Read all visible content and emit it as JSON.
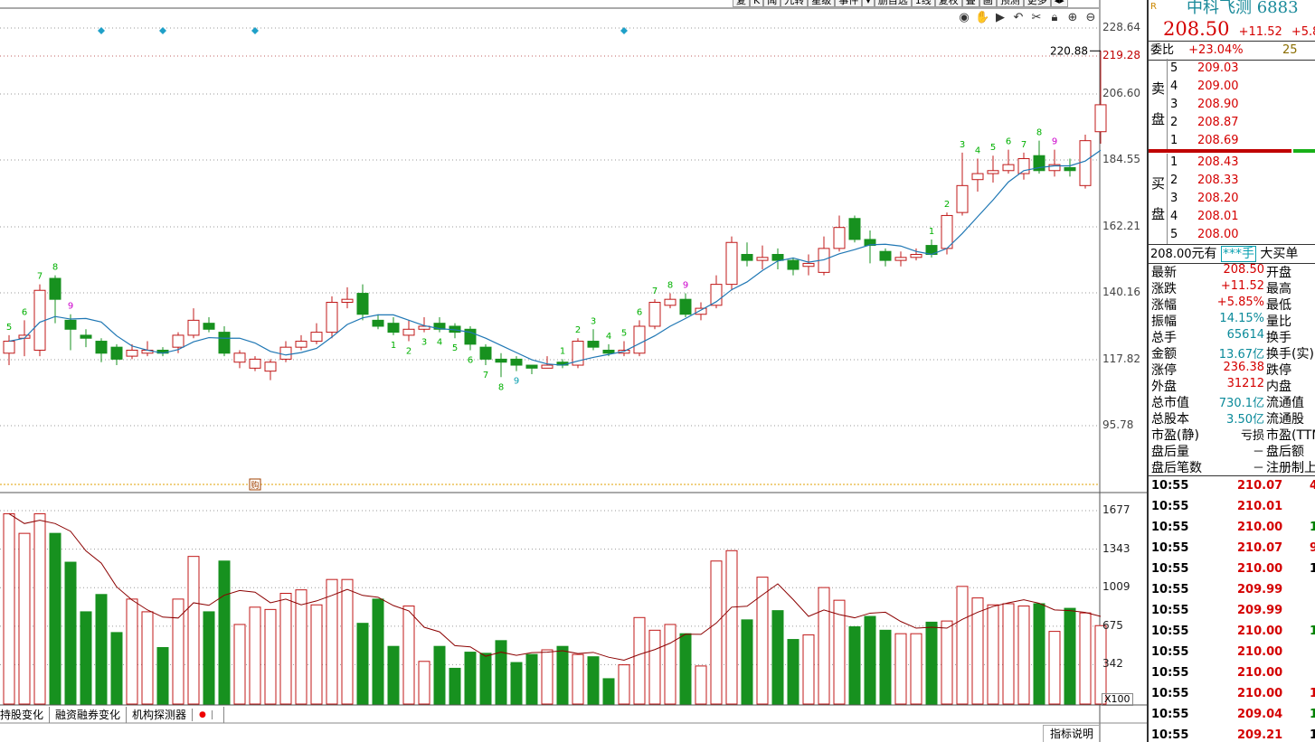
{
  "top_menu": [
    "复",
    "K",
    "闻",
    "九转",
    "星级",
    "事件",
    "▾",
    "删自选",
    "1线",
    "复权",
    "叠",
    "画",
    "预测",
    "更多",
    "◂▸"
  ],
  "price_axis": [
    {
      "v": "228.64",
      "price": 228.64,
      "color": "#444"
    },
    {
      "v": "219.28",
      "price": 219.28,
      "color": "#c00000"
    },
    {
      "v": "206.60",
      "price": 206.6,
      "color": "#444"
    },
    {
      "v": "184.55",
      "price": 184.55,
      "color": "#444"
    },
    {
      "v": "162.21",
      "price": 162.21,
      "color": "#444"
    },
    {
      "v": "140.16",
      "price": 140.16,
      "color": "#444"
    },
    {
      "v": "117.82",
      "price": 117.82,
      "color": "#444"
    },
    {
      "v": "95.78",
      "price": 95.78,
      "color": "#444"
    }
  ],
  "volume_axis": [
    {
      "v": "1677",
      "vol": 1677
    },
    {
      "v": "1343",
      "vol": 1343
    },
    {
      "v": "1009",
      "vol": 1009
    },
    {
      "v": "675",
      "vol": 675
    },
    {
      "v": "342",
      "vol": 342
    }
  ],
  "volume_unit": "X100",
  "max_label": "220.88",
  "buy_marker": "购",
  "tabs": [
    "持股变化",
    "融资融券变化",
    "机构探测器"
  ],
  "indicator_button": "指标说明",
  "candles": [
    {
      "o": 120,
      "c": 124,
      "h": 126,
      "l": 116,
      "v": 1650
    },
    {
      "o": 125,
      "c": 126,
      "h": 131,
      "l": 119,
      "v": 1480
    },
    {
      "o": 121,
      "c": 141,
      "h": 143,
      "l": 119,
      "v": 1650
    },
    {
      "o": 145,
      "c": 138,
      "h": 146,
      "l": 130,
      "v": 1480
    },
    {
      "o": 131,
      "c": 128,
      "h": 133,
      "l": 121,
      "v": 1230
    },
    {
      "o": 126,
      "c": 125,
      "h": 128,
      "l": 122,
      "v": 800
    },
    {
      "o": 124,
      "c": 120,
      "h": 125,
      "l": 117,
      "v": 950
    },
    {
      "o": 122,
      "c": 118,
      "h": 123,
      "l": 116,
      "v": 620
    },
    {
      "o": 119,
      "c": 121,
      "h": 123,
      "l": 118,
      "v": 910
    },
    {
      "o": 120,
      "c": 121,
      "h": 124,
      "l": 119,
      "v": 800
    },
    {
      "o": 121,
      "c": 120,
      "h": 122,
      "l": 119,
      "v": 490
    },
    {
      "o": 122,
      "c": 126,
      "h": 127,
      "l": 120,
      "v": 910
    },
    {
      "o": 126,
      "c": 131,
      "h": 135,
      "l": 125,
      "v": 1280
    },
    {
      "o": 130,
      "c": 128,
      "h": 132,
      "l": 127,
      "v": 800
    },
    {
      "o": 127,
      "c": 120,
      "h": 129,
      "l": 119,
      "v": 1240
    },
    {
      "o": 117,
      "c": 120,
      "h": 121,
      "l": 115,
      "v": 690
    },
    {
      "o": 115,
      "c": 118,
      "h": 119,
      "l": 114,
      "v": 840
    },
    {
      "o": 114,
      "c": 117,
      "h": 118,
      "l": 111,
      "v": 820
    },
    {
      "o": 118,
      "c": 122,
      "h": 124,
      "l": 117,
      "v": 960
    },
    {
      "o": 122,
      "c": 124,
      "h": 126,
      "l": 121,
      "v": 990
    },
    {
      "o": 124,
      "c": 127,
      "h": 130,
      "l": 123,
      "v": 860
    },
    {
      "o": 127,
      "c": 137,
      "h": 139,
      "l": 125,
      "v": 1080
    },
    {
      "o": 137,
      "c": 138,
      "h": 142,
      "l": 135,
      "v": 1080
    },
    {
      "o": 140,
      "c": 133,
      "h": 143,
      "l": 131,
      "v": 700
    },
    {
      "o": 131,
      "c": 129,
      "h": 133,
      "l": 128,
      "v": 910
    },
    {
      "o": 130,
      "c": 127,
      "h": 132,
      "l": 126,
      "v": 500
    },
    {
      "o": 126,
      "c": 128,
      "h": 131,
      "l": 124,
      "v": 850
    },
    {
      "o": 128,
      "c": 129,
      "h": 132,
      "l": 127,
      "v": 370
    },
    {
      "o": 130,
      "c": 128,
      "h": 132,
      "l": 127,
      "v": 500
    },
    {
      "o": 129,
      "c": 127,
      "h": 130,
      "l": 125,
      "v": 310
    },
    {
      "o": 128,
      "c": 123,
      "h": 129,
      "l": 121,
      "v": 450
    },
    {
      "o": 122,
      "c": 118,
      "h": 123,
      "l": 116,
      "v": 440
    },
    {
      "o": 118,
      "c": 117,
      "h": 120,
      "l": 112,
      "v": 550
    },
    {
      "o": 118,
      "c": 116,
      "h": 119,
      "l": 114,
      "v": 360
    },
    {
      "o": 116,
      "c": 115,
      "h": 116,
      "l": 113,
      "v": 430
    },
    {
      "o": 115,
      "c": 116,
      "h": 119,
      "l": 115,
      "v": 470
    },
    {
      "o": 117,
      "c": 116,
      "h": 118,
      "l": 115,
      "v": 500
    },
    {
      "o": 116,
      "c": 124,
      "h": 125,
      "l": 115,
      "v": 430
    },
    {
      "o": 124,
      "c": 122,
      "h": 128,
      "l": 121,
      "v": 410
    },
    {
      "o": 121,
      "c": 120,
      "h": 123,
      "l": 119,
      "v": 220
    },
    {
      "o": 120,
      "c": 121,
      "h": 124,
      "l": 119,
      "v": 340
    },
    {
      "o": 120,
      "c": 129,
      "h": 131,
      "l": 119,
      "v": 750
    },
    {
      "o": 129,
      "c": 137,
      "h": 138,
      "l": 128,
      "v": 640
    },
    {
      "o": 136,
      "c": 138,
      "h": 140,
      "l": 135,
      "v": 690
    },
    {
      "o": 138,
      "c": 133,
      "h": 140,
      "l": 132,
      "v": 610
    },
    {
      "o": 133,
      "c": 135,
      "h": 137,
      "l": 131,
      "v": 330
    },
    {
      "o": 136,
      "c": 143,
      "h": 146,
      "l": 135,
      "v": 1240
    },
    {
      "o": 143,
      "c": 157,
      "h": 159,
      "l": 141,
      "v": 1330
    },
    {
      "o": 153,
      "c": 151,
      "h": 157,
      "l": 149,
      "v": 730
    },
    {
      "o": 151,
      "c": 152,
      "h": 156,
      "l": 148,
      "v": 1100
    },
    {
      "o": 153,
      "c": 151,
      "h": 155,
      "l": 148,
      "v": 810
    },
    {
      "o": 151,
      "c": 148,
      "h": 152,
      "l": 146,
      "v": 560
    },
    {
      "o": 149,
      "c": 150,
      "h": 153,
      "l": 146,
      "v": 600
    },
    {
      "o": 147,
      "c": 155,
      "h": 159,
      "l": 146,
      "v": 1010
    },
    {
      "o": 155,
      "c": 162,
      "h": 166,
      "l": 154,
      "v": 900
    },
    {
      "o": 165,
      "c": 158,
      "h": 166,
      "l": 157,
      "v": 670
    },
    {
      "o": 158,
      "c": 156,
      "h": 161,
      "l": 150,
      "v": 760
    },
    {
      "o": 154,
      "c": 151,
      "h": 155,
      "l": 149,
      "v": 640
    },
    {
      "o": 151,
      "c": 152,
      "h": 154,
      "l": 149,
      "v": 610
    },
    {
      "o": 152,
      "c": 153,
      "h": 155,
      "l": 151,
      "v": 610
    },
    {
      "o": 156,
      "c": 153,
      "h": 158,
      "l": 152,
      "v": 710
    },
    {
      "o": 155,
      "c": 166,
      "h": 167,
      "l": 153,
      "v": 720
    },
    {
      "o": 167,
      "c": 176,
      "h": 187,
      "l": 166,
      "v": 1020
    },
    {
      "o": 178,
      "c": 180,
      "h": 185,
      "l": 174,
      "v": 920
    },
    {
      "o": 180,
      "c": 181,
      "h": 186,
      "l": 177,
      "v": 860
    },
    {
      "o": 181,
      "c": 183,
      "h": 188,
      "l": 180,
      "v": 870
    },
    {
      "o": 180,
      "c": 185,
      "h": 187,
      "l": 178,
      "v": 850
    },
    {
      "o": 186,
      "c": 181,
      "h": 191,
      "l": 180,
      "v": 870
    },
    {
      "o": 181,
      "c": 183,
      "h": 188,
      "l": 179,
      "v": 630
    },
    {
      "o": 182,
      "c": 181,
      "h": 185,
      "l": 179,
      "v": 830
    },
    {
      "o": 176,
      "c": 191,
      "h": 193,
      "l": 175,
      "v": 790
    },
    {
      "o": 194,
      "c": 203,
      "h": 221,
      "l": 190,
      "v": 680
    }
  ],
  "td_counts": [
    {
      "i": 0,
      "t": "5",
      "pos": "above",
      "color": "#00b000"
    },
    {
      "i": 1,
      "t": "6",
      "pos": "above",
      "color": "#00b000"
    },
    {
      "i": 2,
      "t": "7",
      "pos": "above",
      "color": "#00b000"
    },
    {
      "i": 3,
      "t": "8",
      "pos": "above",
      "color": "#00b000"
    },
    {
      "i": 4,
      "t": "9",
      "pos": "above",
      "color": "#cc00cc"
    },
    {
      "i": 25,
      "t": "1",
      "pos": "below",
      "color": "#00b000"
    },
    {
      "i": 26,
      "t": "2",
      "pos": "below",
      "color": "#00b000"
    },
    {
      "i": 27,
      "t": "3",
      "pos": "below",
      "color": "#00b000"
    },
    {
      "i": 28,
      "t": "4",
      "pos": "below",
      "color": "#00b000"
    },
    {
      "i": 29,
      "t": "5",
      "pos": "below",
      "color": "#00b000"
    },
    {
      "i": 30,
      "t": "6",
      "pos": "below",
      "color": "#00b000"
    },
    {
      "i": 31,
      "t": "7",
      "pos": "below",
      "color": "#00b000"
    },
    {
      "i": 32,
      "t": "8",
      "pos": "below",
      "color": "#00b000"
    },
    {
      "i": 33,
      "t": "9",
      "pos": "below",
      "color": "#0aa0b0"
    },
    {
      "i": 36,
      "t": "1",
      "pos": "above",
      "color": "#00b000"
    },
    {
      "i": 37,
      "t": "2",
      "pos": "above",
      "color": "#00b000"
    },
    {
      "i": 38,
      "t": "3",
      "pos": "above",
      "color": "#00b000"
    },
    {
      "i": 39,
      "t": "4",
      "pos": "above",
      "color": "#00b000"
    },
    {
      "i": 40,
      "t": "5",
      "pos": "above",
      "color": "#00b000"
    },
    {
      "i": 41,
      "t": "6",
      "pos": "above",
      "color": "#00b000"
    },
    {
      "i": 42,
      "t": "7",
      "pos": "above",
      "color": "#00b000"
    },
    {
      "i": 43,
      "t": "8",
      "pos": "above",
      "color": "#00b000"
    },
    {
      "i": 44,
      "t": "9",
      "pos": "above",
      "color": "#cc00cc"
    },
    {
      "i": 60,
      "t": "1",
      "pos": "above",
      "color": "#00b000"
    },
    {
      "i": 61,
      "t": "2",
      "pos": "above",
      "color": "#00b000"
    },
    {
      "i": 62,
      "t": "3",
      "pos": "above",
      "color": "#00b000"
    },
    {
      "i": 63,
      "t": "4",
      "pos": "above",
      "color": "#00b000"
    },
    {
      "i": 64,
      "t": "5",
      "pos": "above",
      "color": "#00b000"
    },
    {
      "i": 65,
      "t": "6",
      "pos": "above",
      "color": "#00b000"
    },
    {
      "i": 66,
      "t": "7",
      "pos": "above",
      "color": "#00b000"
    },
    {
      "i": 67,
      "t": "8",
      "pos": "above",
      "color": "#00b000"
    },
    {
      "i": 68,
      "t": "9",
      "pos": "above",
      "color": "#cc00cc"
    }
  ],
  "event_markers": [
    6,
    10,
    16,
    40
  ],
  "stock_header": {
    "logo": "R",
    "name": "中科飞测 6883",
    "price": "208.50",
    "change": "+11.52",
    "pct": "+5.8"
  },
  "weibi": {
    "label": "委比",
    "value": "+23.04%",
    "extra": "25"
  },
  "sell_label": [
    "卖",
    "盘"
  ],
  "buy_label": [
    "买",
    "盘"
  ],
  "asks": [
    {
      "lvl": "5",
      "px": "209.03"
    },
    {
      "lvl": "4",
      "px": "209.00"
    },
    {
      "lvl": "3",
      "px": "208.90"
    },
    {
      "lvl": "2",
      "px": "208.87"
    },
    {
      "lvl": "1",
      "px": "208.69"
    }
  ],
  "bids": [
    {
      "lvl": "1",
      "px": "208.43"
    },
    {
      "lvl": "2",
      "px": "208.33"
    },
    {
      "lvl": "3",
      "px": "208.20"
    },
    {
      "lvl": "4",
      "px": "208.01"
    },
    {
      "lvl": "5",
      "px": "208.00"
    }
  ],
  "quote_bar": {
    "price": "208.00",
    "unit": "元有",
    "qty": "***手",
    "btn": "大买单"
  },
  "stats": [
    {
      "l": "最新",
      "v": "208.50",
      "vc": "r-red",
      "r": "开盘"
    },
    {
      "l": "涨跌",
      "v": "+11.52",
      "vc": "r-red",
      "r": "最高"
    },
    {
      "l": "涨幅",
      "v": "+5.85%",
      "vc": "r-red",
      "r": "最低"
    },
    {
      "l": "振幅",
      "v": "14.15%",
      "vc": "r-teal",
      "r": "量比"
    },
    {
      "l": "总手",
      "v": "65614",
      "vc": "r-teal",
      "r": "换手"
    },
    {
      "l": "金额",
      "v": "13.67亿",
      "vc": "r-teal",
      "r": "换手(实)"
    },
    {
      "l": "涨停",
      "v": "236.38",
      "vc": "r-red",
      "r": "跌停"
    },
    {
      "l": "外盘",
      "v": "31212",
      "vc": "r-red",
      "r": "内盘"
    },
    {
      "l": "总市值",
      "v": "730.1亿",
      "vc": "r-teal",
      "r": "流通值"
    },
    {
      "l": "总股本",
      "v": "3.50亿",
      "vc": "r-teal",
      "r": "流通股"
    },
    {
      "l": "市盈(静)",
      "v": "亏损",
      "vc": "",
      "r": "市盈(TTM)"
    },
    {
      "l": "盘后量",
      "v": "－",
      "vc": "",
      "r": "盘后额"
    },
    {
      "l": "盘后笔数",
      "v": "－",
      "vc": "",
      "r": "注册制上"
    }
  ],
  "ticks": [
    {
      "t": "10:55",
      "p": "210.07",
      "pc": "r-red",
      "q": "4",
      "qc": "r-red"
    },
    {
      "t": "10:55",
      "p": "210.01",
      "pc": "r-red",
      "q": "",
      "qc": ""
    },
    {
      "t": "10:55",
      "p": "210.00",
      "pc": "r-red",
      "q": "1",
      "qc": "r-grn"
    },
    {
      "t": "10:55",
      "p": "210.07",
      "pc": "r-red",
      "q": "9",
      "qc": "r-red"
    },
    {
      "t": "10:55",
      "p": "210.00",
      "pc": "r-red",
      "q": "1",
      "qc": ""
    },
    {
      "t": "10:55",
      "p": "209.99",
      "pc": "r-red",
      "q": "",
      "qc": ""
    },
    {
      "t": "10:55",
      "p": "209.99",
      "pc": "r-red",
      "q": "",
      "qc": ""
    },
    {
      "t": "10:55",
      "p": "210.00",
      "pc": "r-red",
      "q": "1",
      "qc": "r-grn"
    },
    {
      "t": "10:55",
      "p": "210.00",
      "pc": "r-red",
      "q": "",
      "qc": ""
    },
    {
      "t": "10:55",
      "p": "210.00",
      "pc": "r-red",
      "q": "",
      "qc": ""
    },
    {
      "t": "10:55",
      "p": "210.00",
      "pc": "r-red",
      "q": "1",
      "qc": "r-red"
    },
    {
      "t": "10:55",
      "p": "209.04",
      "pc": "r-red",
      "q": "1",
      "qc": "r-grn"
    },
    {
      "t": "10:55",
      "p": "209.21",
      "pc": "r-red",
      "q": "1",
      "qc": ""
    }
  ]
}
